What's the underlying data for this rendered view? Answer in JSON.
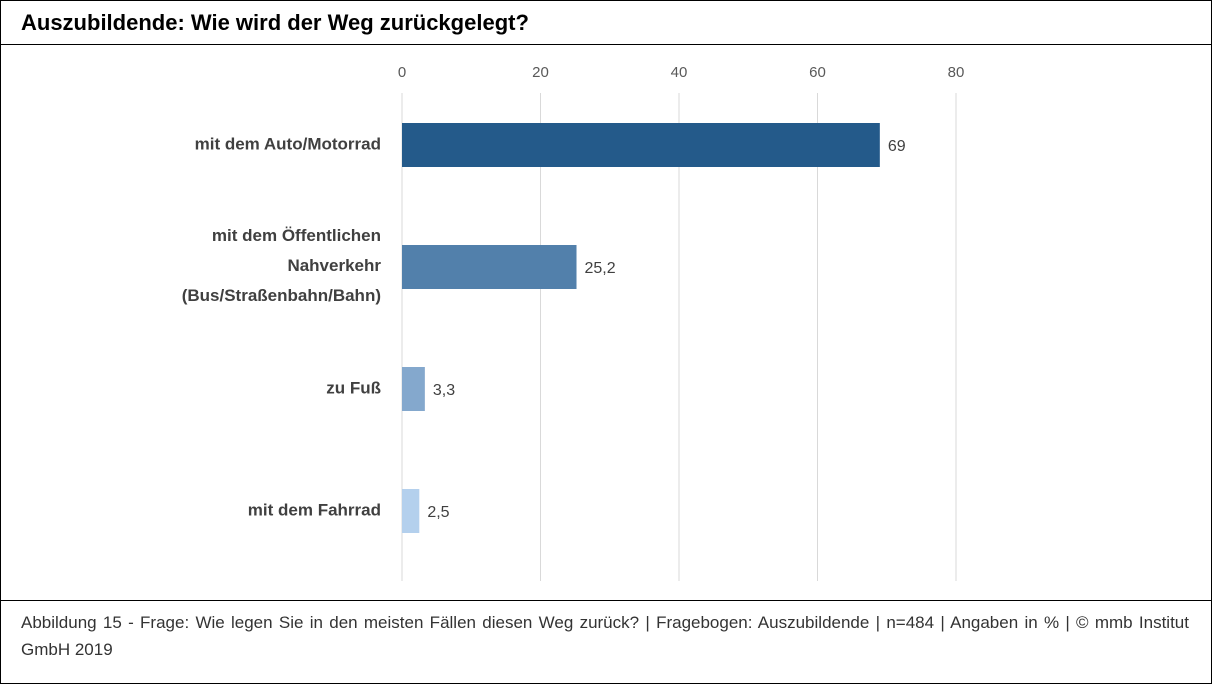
{
  "chart_data": {
    "type": "bar",
    "orientation": "horizontal",
    "title": "Auszubildende: Wie wird der Weg zurückgelegt?",
    "categories": [
      "mit dem Auto/Motorrad",
      "mit dem Öffentlichen\nNahverkehr\n(Bus/Straßenbahn/Bahn)",
      "zu Fuß",
      "mit dem Fahrrad"
    ],
    "values": [
      69,
      25.2,
      3.3,
      2.5
    ],
    "value_labels": [
      "69",
      "25,2",
      "3,3",
      "2,5"
    ],
    "colors": [
      "#245a8a",
      "#5280ab",
      "#84a8cd",
      "#b4d0ed"
    ],
    "xlim": [
      0,
      80
    ],
    "xticks": [
      0,
      20,
      40,
      60,
      80
    ],
    "grid": true,
    "caption": "Abbildung 15 - Frage: Wie legen Sie in den meisten Fällen diesen Weg zurück? | Fragebogen: Auszubildende | n=484 | Angaben in % | © mmb Institut GmbH 2019"
  }
}
